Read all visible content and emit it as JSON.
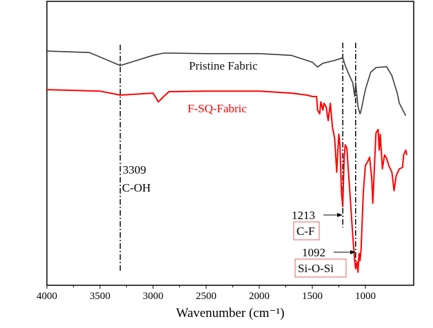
{
  "chart_data": {
    "type": "line",
    "title": "",
    "xlabel": "Wavenumber (cm⁻¹)",
    "ylabel": "",
    "xlim": [
      4000,
      545
    ],
    "ylim": [
      0,
      100
    ],
    "x_ticks": [
      4000,
      3500,
      3000,
      2500,
      2000,
      1500,
      1000
    ],
    "grid": false,
    "series": [
      {
        "name": "Pristine Fabric",
        "color": "#3a3a3a",
        "x": [
          4000,
          3600,
          3309,
          3000,
          2900,
          2500,
          2000,
          1700,
          1500,
          1450,
          1400,
          1300,
          1230,
          1213,
          1190,
          1150,
          1120,
          1100,
          1092,
          1070,
          1050,
          1040,
          1000,
          950,
          900,
          800,
          750,
          700,
          680,
          620
        ],
        "y": [
          82.5,
          82,
          77.4,
          81,
          81.8,
          81.6,
          81.6,
          81,
          78.6,
          76.9,
          78.2,
          79.1,
          79.9,
          80.3,
          77.4,
          73.8,
          71.4,
          66.5,
          71.4,
          62.9,
          60.4,
          61.7,
          68.9,
          75,
          76.7,
          77,
          73.8,
          67.7,
          64.1,
          59.7
        ]
      },
      {
        "name": "F-SQ-Fabric",
        "color": "#ff0000",
        "x": [
          4000,
          3500,
          3309,
          3000,
          2950,
          2900,
          2850,
          2500,
          2000,
          1700,
          1550,
          1500,
          1460,
          1450,
          1430,
          1420,
          1400,
          1390,
          1370,
          1350,
          1330,
          1310,
          1290,
          1270,
          1260,
          1250,
          1240,
          1225,
          1213,
          1200,
          1190,
          1175,
          1150,
          1120,
          1100,
          1092,
          1080,
          1070,
          1060,
          1050,
          1040,
          1020,
          1000,
          980,
          960,
          940,
          930,
          910,
          900,
          880,
          870,
          860,
          840,
          820,
          800,
          780,
          750,
          730,
          710,
          680,
          650,
          640,
          620,
          610
        ],
        "y": [
          68.9,
          68.4,
          67,
          67.7,
          64.6,
          66.5,
          68.2,
          68.4,
          68.4,
          67.7,
          67,
          66.5,
          66.5,
          61.7,
          60.4,
          64.6,
          61.7,
          64.1,
          62.9,
          58,
          64.1,
          55.6,
          51.9,
          39.8,
          47.1,
          53.2,
          49.5,
          32.5,
          27.7,
          44.7,
          49.5,
          48.3,
          35,
          18,
          8.3,
          5.8,
          8.3,
          4.6,
          11.2,
          8.7,
          13.1,
          32.5,
          42.2,
          43.4,
          45.1,
          37.4,
          28.9,
          45.9,
          53.6,
          54.9,
          47.6,
          53.2,
          41,
          45.9,
          44.7,
          42.2,
          39.8,
          33.3,
          38.6,
          41,
          41.5,
          45.9,
          47.6,
          45.9
        ]
      }
    ],
    "legend": {
      "placement": "inline",
      "labels": [
        "Pristine Fabric",
        "F-SQ-Fabric"
      ]
    },
    "annotations": [
      {
        "x": 3309,
        "value": "3309",
        "label": "C-OH"
      },
      {
        "x": 1213,
        "value": "1213",
        "label": "C-F"
      },
      {
        "x": 1092,
        "value": "1092",
        "label": "Si-O-Si"
      }
    ]
  }
}
